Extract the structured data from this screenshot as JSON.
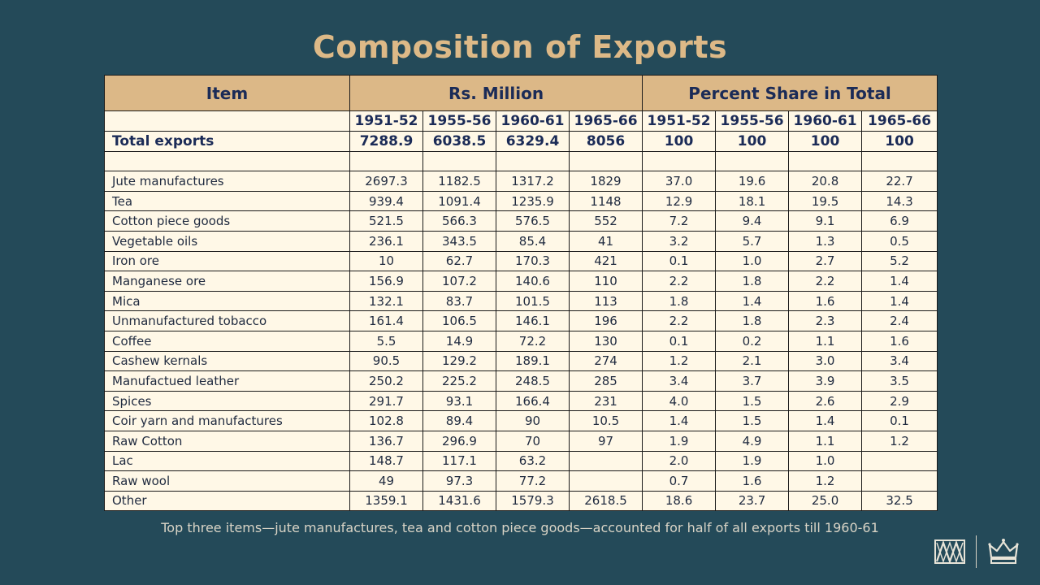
{
  "title": "Composition of Exports",
  "table": {
    "item_header": "Item",
    "group_headers": [
      "Rs. Million",
      "Percent Share in Total"
    ],
    "years": [
      "1951-52",
      "1955-56",
      "1960-61",
      "1965-66",
      "1951-52",
      "1955-56",
      "1960-61",
      "1965-66"
    ],
    "total": {
      "label": "Total exports",
      "values": [
        "7288.9",
        "6038.5",
        "6329.4",
        "8056",
        "100",
        "100",
        "100",
        "100"
      ]
    },
    "rows": [
      {
        "item": "Jute manufactures",
        "values": [
          "2697.3",
          "1182.5",
          "1317.2",
          "1829",
          "37.0",
          "19.6",
          "20.8",
          "22.7"
        ]
      },
      {
        "item": "Tea",
        "values": [
          "939.4",
          "1091.4",
          "1235.9",
          "1148",
          "12.9",
          "18.1",
          "19.5",
          "14.3"
        ]
      },
      {
        "item": "Cotton piece goods",
        "values": [
          "521.5",
          "566.3",
          "576.5",
          "552",
          "7.2",
          "9.4",
          "9.1",
          "6.9"
        ]
      },
      {
        "item": "Vegetable oils",
        "values": [
          "236.1",
          "343.5",
          "85.4",
          "41",
          "3.2",
          "5.7",
          "1.3",
          "0.5"
        ]
      },
      {
        "item": "Iron ore",
        "values": [
          "10",
          "62.7",
          "170.3",
          "421",
          "0.1",
          "1.0",
          "2.7",
          "5.2"
        ]
      },
      {
        "item": "Manganese ore",
        "values": [
          "156.9",
          "107.2",
          "140.6",
          "110",
          "2.2",
          "1.8",
          "2.2",
          "1.4"
        ]
      },
      {
        "item": "Mica",
        "values": [
          "132.1",
          "83.7",
          "101.5",
          "113",
          "1.8",
          "1.4",
          "1.6",
          "1.4"
        ]
      },
      {
        "item": "Unmanufactured tobacco",
        "values": [
          "161.4",
          "106.5",
          "146.1",
          "196",
          "2.2",
          "1.8",
          "2.3",
          "2.4"
        ]
      },
      {
        "item": "Coffee",
        "values": [
          "5.5",
          "14.9",
          "72.2",
          "130",
          "0.1",
          "0.2",
          "1.1",
          "1.6"
        ]
      },
      {
        "item": "Cashew kernals",
        "values": [
          "90.5",
          "129.2",
          "189.1",
          "274",
          "1.2",
          "2.1",
          "3.0",
          "3.4"
        ]
      },
      {
        "item": "Manufactued leather",
        "values": [
          "250.2",
          "225.2",
          "248.5",
          "285",
          "3.4",
          "3.7",
          "3.9",
          "3.5"
        ]
      },
      {
        "item": "Spices",
        "values": [
          "291.7",
          "93.1",
          "166.4",
          "231",
          "4.0",
          "1.5",
          "2.6",
          "2.9"
        ]
      },
      {
        "item": "Coir yarn and manufactures",
        "values": [
          "102.8",
          "89.4",
          "90",
          "10.5",
          "1.4",
          "1.5",
          "1.4",
          "0.1"
        ]
      },
      {
        "item": "Raw Cotton",
        "values": [
          "136.7",
          "296.9",
          "70",
          "97",
          "1.9",
          "4.9",
          "1.1",
          "1.2"
        ]
      },
      {
        "item": "Lac",
        "values": [
          "148.7",
          "117.1",
          "63.2",
          "",
          "2.0",
          "1.9",
          "1.0",
          ""
        ]
      },
      {
        "item": "Raw wool",
        "values": [
          "49",
          "97.3",
          "77.2",
          "",
          "0.7",
          "1.6",
          "1.2",
          ""
        ]
      },
      {
        "item": "Other",
        "values": [
          "1359.1",
          "1431.6",
          "1579.3",
          "2618.5",
          "18.6",
          "23.7",
          "25.0",
          "32.5"
        ]
      }
    ]
  },
  "caption": "Top three items—jute manufactures, tea and cotton piece goods—accounted for half of all exports till 1960-61",
  "colors": {
    "background": "#244a59",
    "title": "#ddb987",
    "header_fill": "#dcb887",
    "cell_fill": "#fff8e7",
    "header_text": "#1b2b57"
  },
  "logos": [
    "university-logo-icon",
    "crown-icon"
  ]
}
